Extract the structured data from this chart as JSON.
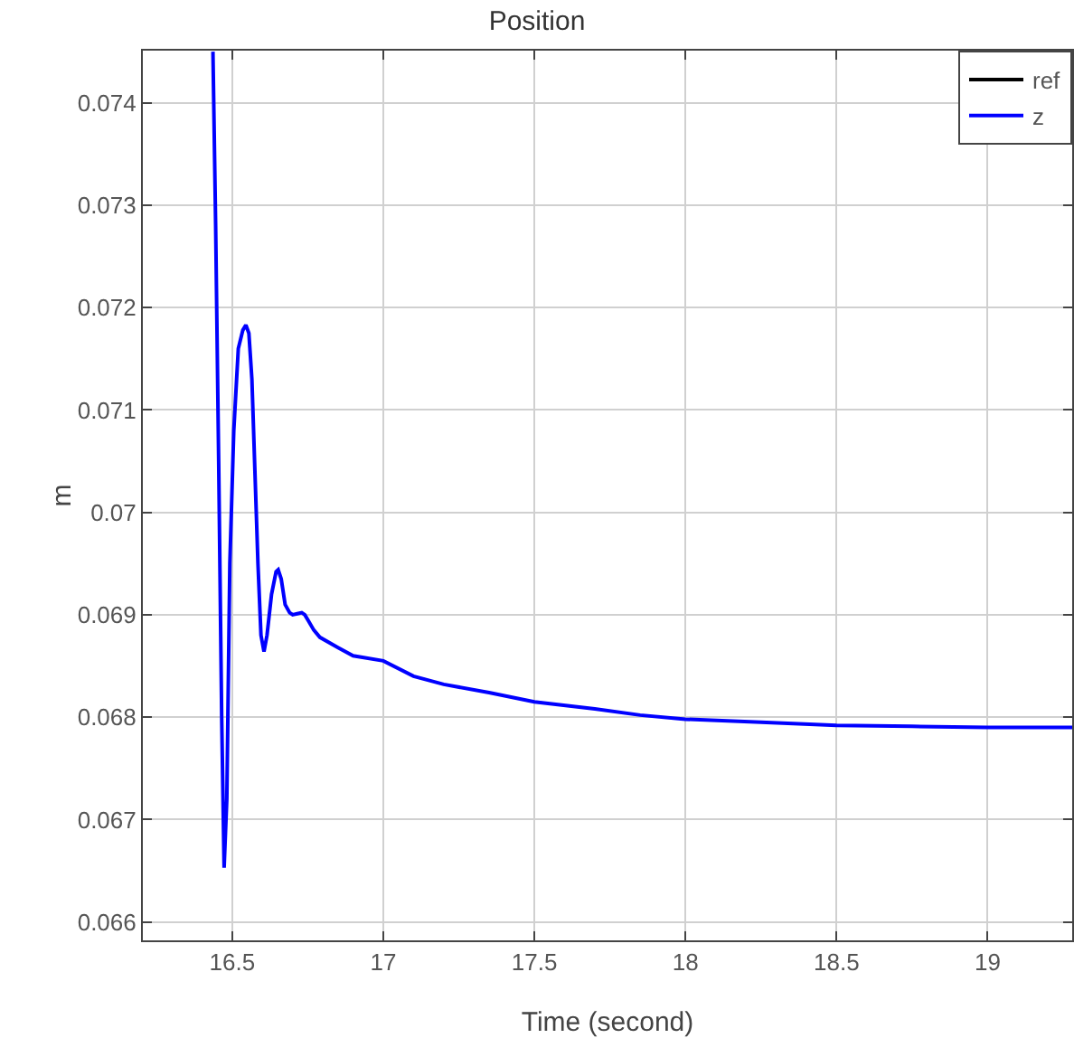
{
  "chart_data": {
    "type": "line",
    "title": "Position",
    "xlabel": "Time (second)",
    "ylabel": "m",
    "xlim": [
      16.204,
      19.28
    ],
    "xticks": [
      16.5,
      17,
      17.5,
      18,
      18.5,
      19
    ],
    "ylim": [
      0.06582,
      0.07451
    ],
    "yticks": [
      0.066,
      0.067,
      0.068,
      0.069,
      0.07,
      0.071,
      0.072,
      0.073,
      0.074
    ],
    "grid": true,
    "legend": "top right",
    "series": [
      {
        "name": "ref",
        "color": "#000000"
      },
      {
        "name": "z",
        "color": "#0000ff",
        "x": [
          16.436,
          16.445,
          16.455,
          16.465,
          16.473,
          16.482,
          16.492,
          16.505,
          16.52,
          16.535,
          16.545,
          16.555,
          16.565,
          16.575,
          16.585,
          16.595,
          16.605,
          16.615,
          16.63,
          16.645,
          16.652,
          16.662,
          16.675,
          16.69,
          16.7,
          16.715,
          16.73,
          16.74,
          16.75,
          16.77,
          16.79,
          16.85,
          16.9,
          17.0,
          17.1,
          17.2,
          17.35,
          17.5,
          17.7,
          17.85,
          18.0,
          18.25,
          18.5,
          18.75,
          19.0,
          19.28
        ],
        "values": [
          0.0745,
          0.0728,
          0.0705,
          0.068,
          0.06653,
          0.0672,
          0.0695,
          0.0708,
          0.0716,
          0.07178,
          0.07183,
          0.07175,
          0.0713,
          0.0704,
          0.0695,
          0.0688,
          0.06864,
          0.0688,
          0.0692,
          0.06942,
          0.06944,
          0.06935,
          0.0691,
          0.06902,
          0.069,
          0.06901,
          0.06902,
          0.069,
          0.06895,
          0.06885,
          0.06878,
          0.06868,
          0.0686,
          0.06855,
          0.0684,
          0.06832,
          0.06824,
          0.06815,
          0.06808,
          0.06802,
          0.06798,
          0.06795,
          0.06792,
          0.06791,
          0.0679,
          0.0679
        ]
      }
    ]
  }
}
